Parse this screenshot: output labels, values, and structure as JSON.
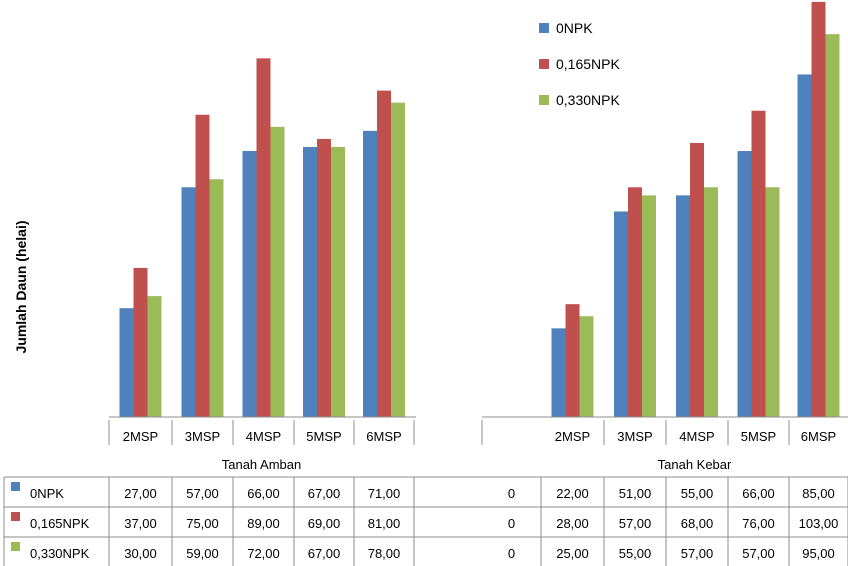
{
  "chart_data": {
    "type": "bar",
    "ylabel": "Jumlah Daun (helai)",
    "ylim": [
      0,
      103
    ],
    "grid": false,
    "legend_position": "top-right",
    "groups": [
      {
        "name": "Tanah Amban",
        "categories": [
          "2MSP",
          "3MSP",
          "4MSP",
          "5MSP",
          "6MSP"
        ]
      },
      {
        "name": "Tanah Kebar",
        "categories": [
          "2MSP",
          "3MSP",
          "4MSP",
          "5MSP",
          "6MSP"
        ]
      }
    ],
    "series": [
      {
        "name": "0NPK",
        "color": "#4F81BD",
        "amban": [
          27,
          57,
          66,
          67,
          71
        ],
        "kebar": [
          22,
          51,
          55,
          66,
          85
        ],
        "amban_text": [
          "27,00",
          "57,00",
          "66,00",
          "67,00",
          "71,00"
        ],
        "gap_text": "0",
        "kebar_text": [
          "22,00",
          "51,00",
          "55,00",
          "66,00",
          "85,00"
        ]
      },
      {
        "name": "0,165NPK",
        "color": "#C0504D",
        "amban": [
          37,
          75,
          89,
          69,
          81
        ],
        "kebar": [
          28,
          57,
          68,
          76,
          103
        ],
        "amban_text": [
          "37,00",
          "75,00",
          "89,00",
          "69,00",
          "81,00"
        ],
        "gap_text": "0",
        "kebar_text": [
          "28,00",
          "57,00",
          "68,00",
          "76,00",
          "103,00"
        ]
      },
      {
        "name": "0,330NPK",
        "color": "#9BBB59",
        "amban": [
          30,
          59,
          72,
          67,
          78
        ],
        "kebar": [
          25,
          55,
          57,
          57,
          95
        ],
        "amban_text": [
          "30,00",
          "59,00",
          "72,00",
          "67,00",
          "78,00"
        ],
        "gap_text": "0",
        "kebar_text": [
          "25,00",
          "55,00",
          "57,00",
          "57,00",
          "95,00"
        ]
      }
    ]
  }
}
